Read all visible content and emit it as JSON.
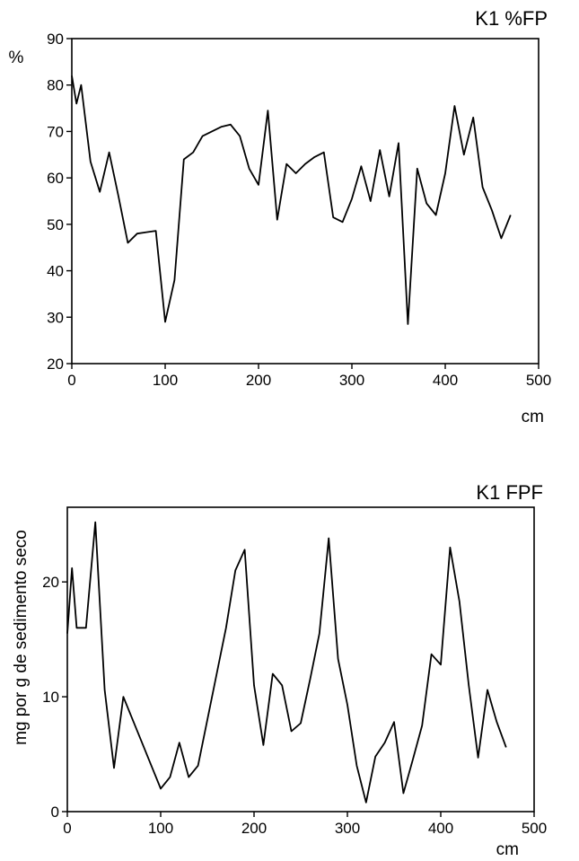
{
  "chart_data": [
    {
      "type": "line",
      "title": "K1 %FP",
      "xlabel": "cm",
      "ylabel": "%",
      "xlim": [
        0,
        500
      ],
      "ylim": [
        20,
        90
      ],
      "xticks": [
        "0",
        "100",
        "200",
        "300",
        "400",
        "500"
      ],
      "yticks": [
        "20",
        "30",
        "40",
        "50",
        "60",
        "70",
        "80",
        "90"
      ],
      "series": [
        {
          "x": [
            0,
            5,
            10,
            20,
            30,
            40,
            50,
            60,
            70,
            80,
            90,
            100,
            110,
            120,
            130,
            140,
            150,
            160,
            170,
            180,
            190,
            200,
            210,
            220,
            230,
            240,
            250,
            260,
            270,
            280,
            290,
            300,
            310,
            320,
            330,
            340,
            350,
            360,
            370,
            380,
            390,
            400,
            410,
            420,
            430,
            440,
            450,
            460,
            470
          ],
          "y": [
            82,
            76,
            80,
            63.5,
            57,
            65.5,
            56,
            46,
            48,
            48.3,
            48.6,
            29,
            38,
            64,
            65.5,
            69,
            70,
            71,
            71.5,
            69,
            62,
            58.5,
            74.5,
            51,
            63,
            61,
            63,
            64.5,
            65.5,
            51.5,
            50.5,
            55.5,
            62.5,
            55,
            66,
            56,
            67.5,
            28.5,
            62,
            54.5,
            52,
            61,
            75.5,
            65,
            73,
            58,
            53,
            47,
            52
          ]
        }
      ]
    },
    {
      "type": "line",
      "title": "K1 FPF",
      "xlabel": "cm",
      "ylabel": "mg por g de sedimento seco",
      "xlim": [
        0,
        500
      ],
      "ylim": [
        0,
        26.5
      ],
      "xticks": [
        "0",
        "100",
        "200",
        "300",
        "400",
        "500"
      ],
      "yticks": [
        "0",
        "10",
        "20"
      ],
      "series": [
        {
          "x": [
            0,
            5,
            10,
            20,
            30,
            40,
            50,
            60,
            70,
            80,
            90,
            100,
            110,
            120,
            130,
            140,
            150,
            160,
            170,
            180,
            190,
            200,
            210,
            220,
            230,
            240,
            250,
            260,
            270,
            280,
            290,
            300,
            310,
            320,
            330,
            340,
            350,
            360,
            370,
            380,
            390,
            400,
            410,
            420,
            430,
            440,
            450,
            460,
            470
          ],
          "y": [
            15.5,
            21.2,
            16,
            16,
            25.2,
            10.6,
            3.8,
            10,
            8,
            6,
            4,
            2,
            3,
            6,
            3,
            4,
            8,
            12,
            16,
            21,
            22.8,
            11,
            5.8,
            12,
            11,
            7,
            7.7,
            11.5,
            15.5,
            23.8,
            13.3,
            9.3,
            4,
            0.8,
            4.8,
            6,
            7.8,
            1.6,
            4.5,
            7.5,
            13.7,
            12.8,
            23,
            18.3,
            11,
            4.7,
            10.6,
            7.8,
            5.6
          ]
        }
      ]
    }
  ]
}
